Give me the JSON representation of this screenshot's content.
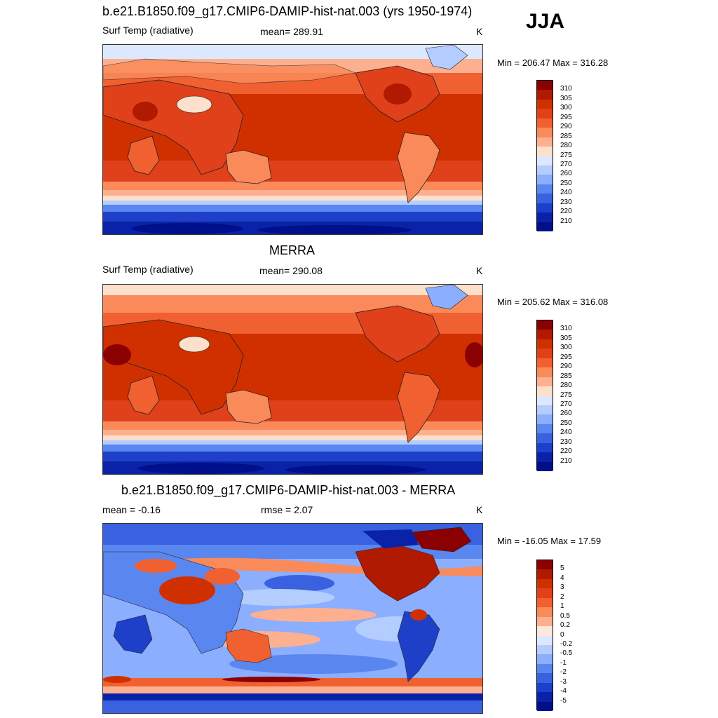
{
  "season": "JJA",
  "panels": [
    {
      "title": "b.e21.B1850.f09_g17.CMIP6-DAMIP-hist-nat.003 (yrs 1950-1974)",
      "left_label": "Surf Temp (radiative)",
      "center_label": "mean= 289.91",
      "units": "K",
      "minmax": "Min = 206.47 Max = 316.28",
      "colorbar_labels": [
        "310",
        "305",
        "300",
        "295",
        "290",
        "285",
        "280",
        "275",
        "270",
        "260",
        "250",
        "240",
        "230",
        "220",
        "210"
      ]
    },
    {
      "title": "MERRA",
      "left_label": "Surf Temp (radiative)",
      "center_label": "mean= 290.08",
      "units": "K",
      "minmax": "Min = 205.62 Max = 316.08",
      "colorbar_labels": [
        "310",
        "305",
        "300",
        "295",
        "290",
        "285",
        "280",
        "275",
        "270",
        "260",
        "250",
        "240",
        "230",
        "220",
        "210"
      ]
    },
    {
      "title": "b.e21.B1850.f09_g17.CMIP6-DAMIP-hist-nat.003 - MERRA",
      "left_label": "mean =  -0.16",
      "center_label": "rmse =   2.07",
      "units": "K",
      "minmax": "Min = -16.05 Max =  17.59",
      "colorbar_labels": [
        "5",
        "4",
        "3",
        "2",
        "1",
        "0.5",
        "0.2",
        "0",
        "-0.2",
        "-0.5",
        "-1",
        "-2",
        "-3",
        "-4",
        "-5"
      ]
    }
  ],
  "colors": {
    "temp_scale": [
      "#8b0000",
      "#b01a00",
      "#d03000",
      "#e0401a",
      "#f06030",
      "#fa8a5a",
      "#fcb090",
      "#fde0cc",
      "#dbe8ff",
      "#b3cdff",
      "#8caeff",
      "#5a86f0",
      "#3a62e0",
      "#1e40c8",
      "#0a22a8",
      "#00108a"
    ],
    "diff_scale": [
      "#8b0000",
      "#b01a00",
      "#d03000",
      "#e0401a",
      "#f06030",
      "#fa8a5a",
      "#fcb090",
      "#fde8dc",
      "#dbe8ff",
      "#b3cdff",
      "#8caeff",
      "#5a86f0",
      "#3a62e0",
      "#1e40c8",
      "#0a22a8",
      "#00108a"
    ]
  }
}
